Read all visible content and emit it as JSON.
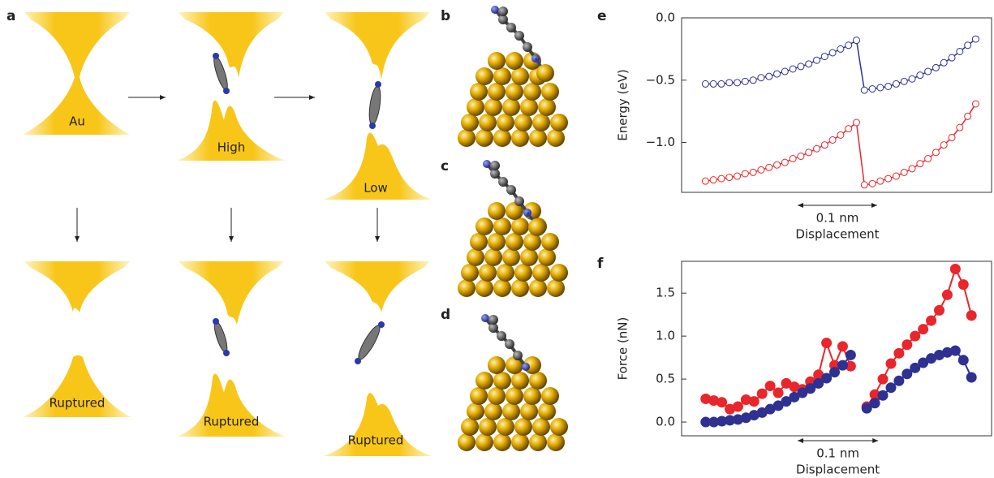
{
  "panel_labels": [
    "a",
    "b",
    "c",
    "d",
    "e",
    "f"
  ],
  "panel_a": {
    "states": [
      "Au",
      "High",
      "Low"
    ],
    "ruptured": [
      "Ruptured",
      "Ruptured",
      "Ruptured"
    ]
  },
  "chart_data": [
    {
      "type": "line",
      "marker": "open",
      "ylabel": "Energy (eV)",
      "xlabel": "Displacement",
      "scale_bar": {
        "value": 0.1,
        "label": "0.1 nm"
      },
      "xlim": [
        0,
        0.39
      ],
      "ylim": [
        -1.4,
        0
      ],
      "yticks": [
        {
          "value": 0,
          "label": "0.0"
        },
        {
          "value": -0.5,
          "label": "−0.5"
        },
        {
          "value": -1,
          "label": "−1.0"
        }
      ],
      "x": [
        0.03,
        0.04,
        0.05,
        0.06,
        0.07,
        0.08,
        0.09,
        0.1,
        0.11,
        0.12,
        0.13,
        0.14,
        0.15,
        0.16,
        0.17,
        0.18,
        0.19,
        0.2,
        0.21,
        0.22,
        0.23,
        0.24,
        0.25,
        0.26,
        0.27,
        0.28,
        0.29,
        0.3,
        0.31,
        0.32,
        0.33,
        0.34,
        0.35,
        0.36,
        0.37
      ],
      "series": [
        {
          "color": "#2e3192",
          "values": [
            -0.53,
            -0.53,
            -0.53,
            -0.52,
            -0.52,
            -0.51,
            -0.5,
            -0.48,
            -0.47,
            -0.45,
            -0.43,
            -0.41,
            -0.39,
            -0.37,
            -0.34,
            -0.31,
            -0.28,
            -0.25,
            -0.22,
            -0.18,
            -0.58,
            -0.57,
            -0.56,
            -0.55,
            -0.53,
            -0.51,
            -0.49,
            -0.46,
            -0.43,
            -0.4,
            -0.36,
            -0.32,
            -0.27,
            -0.22,
            -0.17
          ]
        },
        {
          "color": "#e8262b",
          "values": [
            -1.31,
            -1.3,
            -1.29,
            -1.28,
            -1.27,
            -1.25,
            -1.24,
            -1.22,
            -1.2,
            -1.18,
            -1.16,
            -1.13,
            -1.11,
            -1.08,
            -1.05,
            -1.02,
            -0.98,
            -0.94,
            -0.89,
            -0.84,
            -1.34,
            -1.33,
            -1.31,
            -1.29,
            -1.27,
            -1.24,
            -1.21,
            -1.17,
            -1.13,
            -1.08,
            -1.02,
            -0.96,
            -0.88,
            -0.79,
            -0.69
          ]
        }
      ]
    },
    {
      "type": "line",
      "marker": "filled",
      "ylabel": "Force (nN)",
      "xlabel": "Displacement",
      "scale_bar": {
        "value": 0.1,
        "label": "0.1 nm"
      },
      "xlim": [
        0,
        0.385
      ],
      "ylim": [
        -0.16,
        1.87
      ],
      "yticks": [
        {
          "value": 0,
          "label": "0.0"
        },
        0.5,
        {
          "value": 1,
          "label": "1.0"
        },
        1.5
      ],
      "x": [
        0.03,
        0.04,
        0.05,
        0.06,
        0.07,
        0.08,
        0.09,
        0.1,
        0.11,
        0.12,
        0.13,
        0.14,
        0.15,
        0.16,
        0.17,
        0.18,
        0.19,
        0.2,
        0.21,
        0.22,
        0.23,
        0.24,
        0.25,
        0.26,
        0.27,
        0.28,
        0.29,
        0.3,
        0.31,
        0.32,
        0.33,
        0.34,
        0.35,
        0.36
      ],
      "series": [
        {
          "color": "#e8262b",
          "values": [
            0.27,
            0.25,
            0.23,
            0.15,
            0.18,
            0.26,
            0.24,
            0.33,
            0.42,
            0.34,
            0.45,
            0.41,
            0.38,
            0.47,
            0.55,
            0.92,
            0.66,
            0.88,
            0.65,
            null,
            0.18,
            0.32,
            0.5,
            0.68,
            0.8,
            0.9,
            1.0,
            1.08,
            1.18,
            1.3,
            1.48,
            1.78,
            1.6,
            1.24
          ]
        },
        {
          "color": "#2e3192",
          "values": [
            0.0,
            0.0,
            0.01,
            0.02,
            0.03,
            0.05,
            0.08,
            0.11,
            0.15,
            0.19,
            0.24,
            0.29,
            0.34,
            0.39,
            0.45,
            0.51,
            0.58,
            0.66,
            0.78,
            null,
            0.16,
            0.22,
            0.31,
            0.4,
            0.48,
            0.56,
            0.63,
            0.69,
            0.74,
            0.78,
            0.81,
            0.83,
            0.72,
            0.52
          ]
        }
      ]
    }
  ]
}
